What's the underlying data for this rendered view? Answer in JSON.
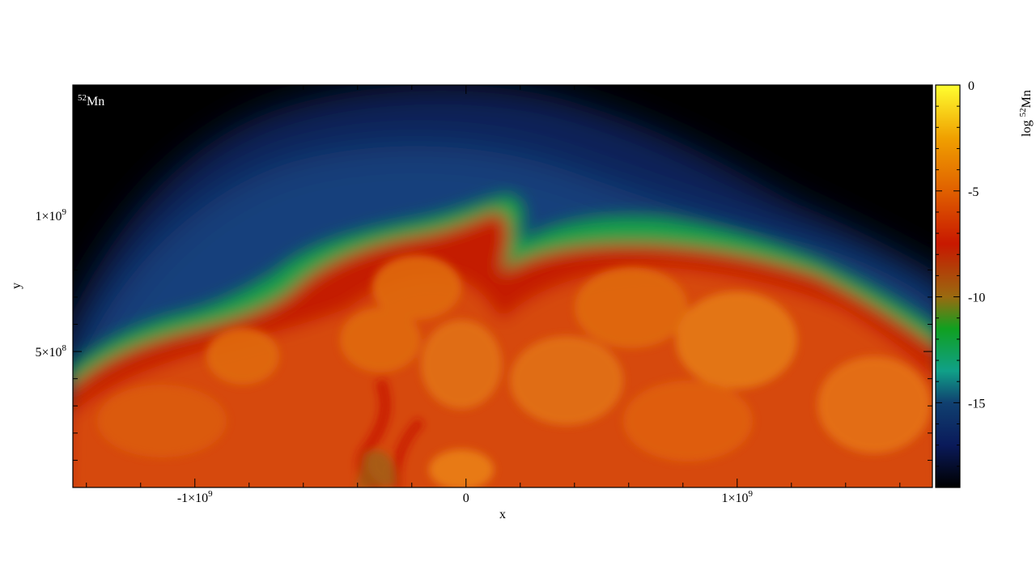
{
  "chart_data": {
    "type": "heatmap",
    "title": "",
    "panel_label": {
      "sup": "52",
      "text": "Mn"
    },
    "xlabel": "x",
    "ylabel": "y",
    "xlim": [
      -1450000000,
      1720000000
    ],
    "ylim": [
      0,
      1480000000
    ],
    "xticks": [
      {
        "value": -1000000000,
        "label": "-1×10",
        "sup": "9"
      },
      {
        "value": 0,
        "label": "0",
        "sup": ""
      },
      {
        "value": 1000000000,
        "label": "1×10",
        "sup": "9"
      }
    ],
    "yticks": [
      {
        "value": 500000000,
        "label": "5×10",
        "sup": "8"
      },
      {
        "value": 1000000000,
        "label": "1×10",
        "sup": "9"
      }
    ],
    "colorbar": {
      "label_prefix": "log ",
      "label_sup": "52",
      "label_text": "Mn",
      "range": [
        -19,
        0
      ],
      "ticks": [
        {
          "value": 0,
          "label": "0"
        },
        {
          "value": -5,
          "label": "-5"
        },
        {
          "value": -10,
          "label": "-10"
        },
        {
          "value": -15,
          "label": "-15"
        }
      ],
      "colors": [
        {
          "value": 0,
          "color": "#ffff30"
        },
        {
          "value": -2.5,
          "color": "#f0a000"
        },
        {
          "value": -5,
          "color": "#e06000"
        },
        {
          "value": -7.5,
          "color": "#c81800"
        },
        {
          "value": -10,
          "color": "#9a6a10"
        },
        {
          "value": -11.5,
          "color": "#10a020"
        },
        {
          "value": -13.5,
          "color": "#10a088"
        },
        {
          "value": -15,
          "color": "#104070"
        },
        {
          "value": -17,
          "color": "#0a1a5a"
        },
        {
          "value": -19,
          "color": "#000000"
        }
      ]
    },
    "field_colors": {
      "background": "#000000",
      "halo": "#0d2a66",
      "halo_inner": "#134a86",
      "shell": "#1aa058",
      "rim": "#10a030",
      "edge": "#c81800",
      "core": "#d84a08",
      "bubble": "#e57010"
    }
  }
}
